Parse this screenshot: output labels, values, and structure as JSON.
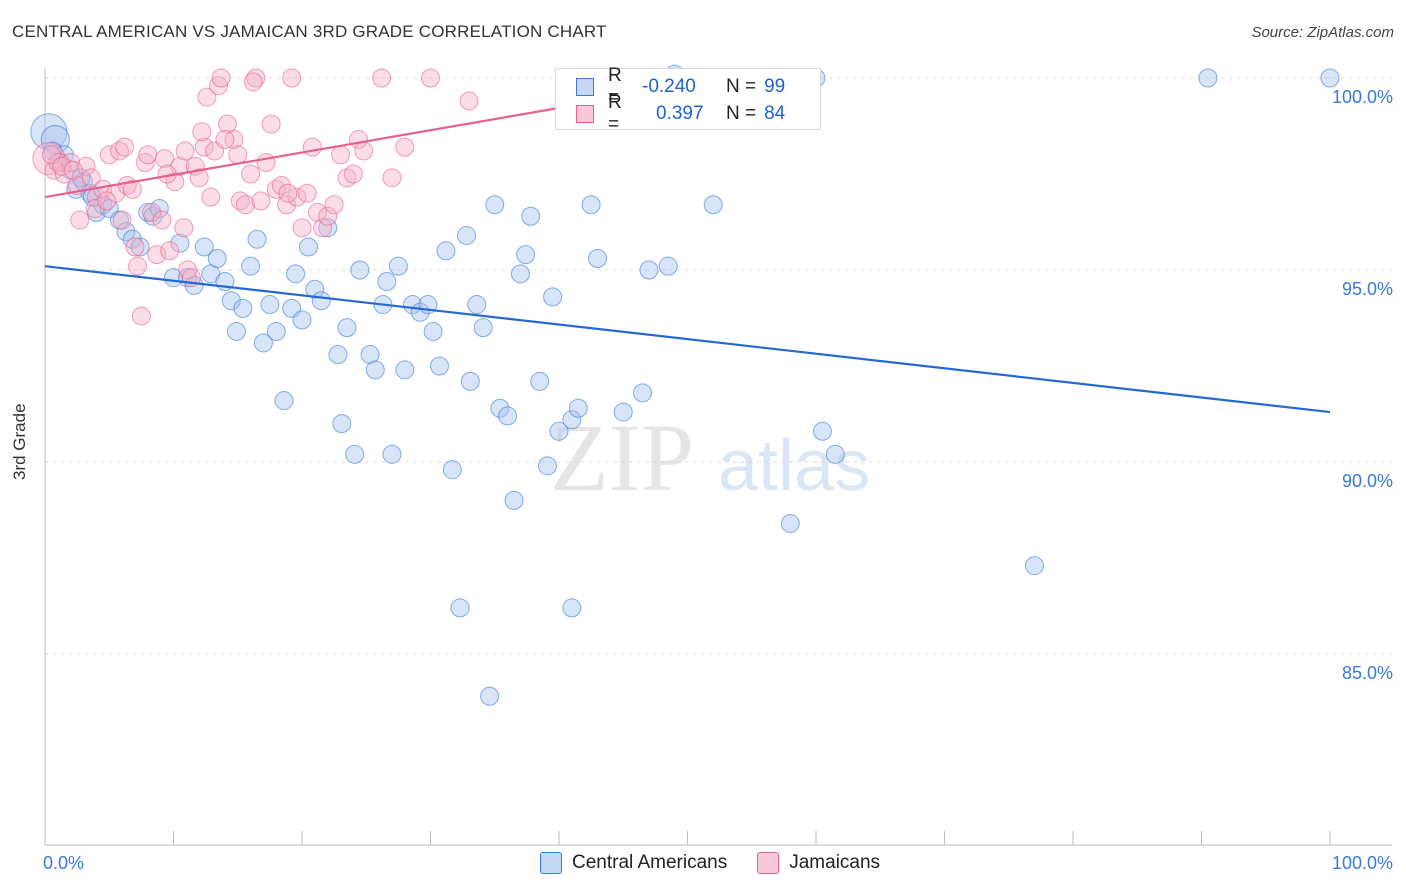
{
  "title": "CENTRAL AMERICAN VS JAMAICAN 3RD GRADE CORRELATION CHART",
  "source": "Source: ZipAtlas.com",
  "watermark": {
    "zip": "ZIP",
    "atlas": "atlas"
  },
  "legend": {
    "rows": [
      {
        "label": "R =",
        "r_value": "-0.240",
        "n_label": "N =",
        "n_value": "99",
        "color": "#a9c4ee"
      },
      {
        "label": "R =",
        "r_value": "0.397",
        "n_label": "N =",
        "n_value": "84",
        "color": "#f5b3c8"
      }
    ]
  },
  "bottom_legend": [
    {
      "label": "Central Americans",
      "color": "#a9c4ee"
    },
    {
      "label": "Jamaicans",
      "color": "#f5b3c8"
    }
  ],
  "chart_data": {
    "type": "scatter",
    "title": "CENTRAL AMERICAN VS JAMAICAN 3RD GRADE CORRELATION CHART",
    "xlabel": "",
    "ylabel": "3rd Grade",
    "xlim": [
      0,
      100
    ],
    "ylim": [
      80.5,
      100.5
    ],
    "x_tick_labels": [
      "0.0%",
      "100.0%"
    ],
    "y_tick_values": [
      85,
      90,
      95,
      100
    ],
    "y_tick_labels": [
      "85.0%",
      "90.0%",
      "95.0%",
      "100.0%"
    ],
    "grid": true,
    "colors": {
      "blue": "#3b7ad6",
      "blue_fill": "#a9c4ee",
      "pink": "#e8608e",
      "pink_fill": "#f5b3c8",
      "axis_text": "#3b7ad6"
    },
    "series": [
      {
        "name": "Central Americans",
        "color": "#3b7ad6",
        "trend": {
          "x": [
            0,
            100
          ],
          "y": [
            95.1,
            91.3
          ]
        },
        "points": [
          [
            0.3,
            98.6
          ],
          [
            0.8,
            98.4
          ],
          [
            1.5,
            98.0
          ],
          [
            2.0,
            97.6
          ],
          [
            2.4,
            97.1
          ],
          [
            3.0,
            97.3
          ],
          [
            3.5,
            97.0
          ],
          [
            4.0,
            96.5
          ],
          [
            4.5,
            96.7
          ],
          [
            5.0,
            96.6
          ],
          [
            5.8,
            96.3
          ],
          [
            6.3,
            96.0
          ],
          [
            6.8,
            95.8
          ],
          [
            7.4,
            95.6
          ],
          [
            8.0,
            96.5
          ],
          [
            8.4,
            96.4
          ],
          [
            8.9,
            96.6
          ],
          [
            10.0,
            94.8
          ],
          [
            10.5,
            95.7
          ],
          [
            11.1,
            94.8
          ],
          [
            11.6,
            94.6
          ],
          [
            12.4,
            95.6
          ],
          [
            12.9,
            94.9
          ],
          [
            13.4,
            95.3
          ],
          [
            14.0,
            94.7
          ],
          [
            14.5,
            94.2
          ],
          [
            14.9,
            93.4
          ],
          [
            15.4,
            94.0
          ],
          [
            16.0,
            95.1
          ],
          [
            16.5,
            95.8
          ],
          [
            17.0,
            93.1
          ],
          [
            17.5,
            94.1
          ],
          [
            18.0,
            93.4
          ],
          [
            18.6,
            91.6
          ],
          [
            19.2,
            94.0
          ],
          [
            19.5,
            94.9
          ],
          [
            20.0,
            93.7
          ],
          [
            20.5,
            95.6
          ],
          [
            21.0,
            94.5
          ],
          [
            21.5,
            94.2
          ],
          [
            22.0,
            96.1
          ],
          [
            22.8,
            92.8
          ],
          [
            23.1,
            91.0
          ],
          [
            23.5,
            93.5
          ],
          [
            24.1,
            90.2
          ],
          [
            24.5,
            95.0
          ],
          [
            25.3,
            92.8
          ],
          [
            25.7,
            92.4
          ],
          [
            26.3,
            94.1
          ],
          [
            26.6,
            94.7
          ],
          [
            27.0,
            90.2
          ],
          [
            27.5,
            95.1
          ],
          [
            28.0,
            92.4
          ],
          [
            28.6,
            94.1
          ],
          [
            29.2,
            93.9
          ],
          [
            29.8,
            94.1
          ],
          [
            30.2,
            93.4
          ],
          [
            30.7,
            92.5
          ],
          [
            31.2,
            95.5
          ],
          [
            31.7,
            89.8
          ],
          [
            32.3,
            86.2
          ],
          [
            32.8,
            95.9
          ],
          [
            33.1,
            92.1
          ],
          [
            33.6,
            94.1
          ],
          [
            34.1,
            93.5
          ],
          [
            34.6,
            83.9
          ],
          [
            35.0,
            96.7
          ],
          [
            35.4,
            91.4
          ],
          [
            36.0,
            91.2
          ],
          [
            36.5,
            89.0
          ],
          [
            37.0,
            94.9
          ],
          [
            37.4,
            95.4
          ],
          [
            37.8,
            96.4
          ],
          [
            38.5,
            92.1
          ],
          [
            39.1,
            89.9
          ],
          [
            39.5,
            94.3
          ],
          [
            40.0,
            90.8
          ],
          [
            41.0,
            86.2
          ],
          [
            41.0,
            91.1
          ],
          [
            41.5,
            91.4
          ],
          [
            42.5,
            96.7
          ],
          [
            43.0,
            95.3
          ],
          [
            45.0,
            91.3
          ],
          [
            46.5,
            91.8
          ],
          [
            47.0,
            95.0
          ],
          [
            48.5,
            95.1
          ],
          [
            49.0,
            100.1
          ],
          [
            52.0,
            96.7
          ],
          [
            58.0,
            88.4
          ],
          [
            60.0,
            100.0
          ],
          [
            60.5,
            90.8
          ],
          [
            61.5,
            90.2
          ],
          [
            77.0,
            87.3
          ],
          [
            90.5,
            100.0
          ],
          [
            100.0,
            100.0
          ],
          [
            0.6,
            98.1
          ],
          [
            1.2,
            97.8
          ],
          [
            2.8,
            97.4
          ],
          [
            3.7,
            96.9
          ]
        ]
      },
      {
        "name": "Jamaicans",
        "color": "#e8608e",
        "trend": {
          "x": [
            0,
            50
          ],
          "y": [
            96.9,
            99.8
          ]
        },
        "points": [
          [
            0.3,
            97.9
          ],
          [
            0.7,
            97.6
          ],
          [
            1.0,
            97.8
          ],
          [
            1.5,
            97.5
          ],
          [
            2.0,
            97.8
          ],
          [
            2.5,
            97.2
          ],
          [
            2.7,
            96.3
          ],
          [
            3.2,
            97.7
          ],
          [
            3.6,
            97.4
          ],
          [
            4.0,
            96.9
          ],
          [
            4.5,
            97.1
          ],
          [
            5.0,
            98.0
          ],
          [
            5.5,
            97.0
          ],
          [
            5.8,
            98.1
          ],
          [
            6.2,
            98.2
          ],
          [
            6.4,
            97.2
          ],
          [
            6.8,
            97.1
          ],
          [
            7.0,
            95.6
          ],
          [
            7.2,
            95.1
          ],
          [
            7.5,
            93.8
          ],
          [
            7.8,
            97.8
          ],
          [
            8.0,
            98.0
          ],
          [
            8.3,
            96.5
          ],
          [
            8.7,
            95.4
          ],
          [
            9.1,
            96.3
          ],
          [
            9.3,
            97.9
          ],
          [
            9.7,
            95.5
          ],
          [
            10.1,
            97.3
          ],
          [
            10.5,
            97.7
          ],
          [
            10.9,
            98.1
          ],
          [
            11.1,
            95.0
          ],
          [
            11.4,
            94.8
          ],
          [
            11.7,
            97.7
          ],
          [
            12.0,
            97.4
          ],
          [
            12.4,
            98.2
          ],
          [
            12.6,
            99.5
          ],
          [
            12.9,
            96.9
          ],
          [
            13.2,
            98.1
          ],
          [
            13.5,
            99.8
          ],
          [
            13.7,
            100.0
          ],
          [
            14.2,
            98.8
          ],
          [
            14.7,
            98.4
          ],
          [
            15.0,
            98.0
          ],
          [
            15.2,
            96.8
          ],
          [
            15.6,
            96.7
          ],
          [
            16.0,
            97.5
          ],
          [
            16.4,
            100.0
          ],
          [
            16.8,
            96.8
          ],
          [
            17.2,
            97.8
          ],
          [
            17.6,
            98.8
          ],
          [
            18.0,
            97.1
          ],
          [
            18.4,
            97.2
          ],
          [
            18.8,
            96.7
          ],
          [
            19.2,
            100.0
          ],
          [
            19.6,
            96.9
          ],
          [
            20.0,
            96.1
          ],
          [
            20.4,
            97.0
          ],
          [
            20.8,
            98.2
          ],
          [
            21.2,
            96.5
          ],
          [
            21.6,
            96.1
          ],
          [
            22.0,
            96.4
          ],
          [
            22.5,
            96.7
          ],
          [
            23.0,
            98.0
          ],
          [
            23.5,
            97.4
          ],
          [
            24.0,
            97.5
          ],
          [
            24.4,
            98.4
          ],
          [
            24.8,
            98.1
          ],
          [
            26.2,
            100.0
          ],
          [
            27.0,
            97.4
          ],
          [
            28.0,
            98.2
          ],
          [
            30.0,
            100.0
          ],
          [
            33.0,
            99.4
          ],
          [
            0.5,
            98.0
          ],
          [
            1.3,
            97.7
          ],
          [
            2.2,
            97.6
          ],
          [
            3.9,
            96.6
          ],
          [
            4.8,
            96.8
          ],
          [
            6.0,
            96.3
          ],
          [
            9.5,
            97.5
          ],
          [
            10.8,
            96.1
          ],
          [
            12.2,
            98.6
          ],
          [
            14.0,
            98.4
          ],
          [
            16.2,
            99.9
          ],
          [
            18.9,
            97.0
          ]
        ]
      }
    ]
  }
}
